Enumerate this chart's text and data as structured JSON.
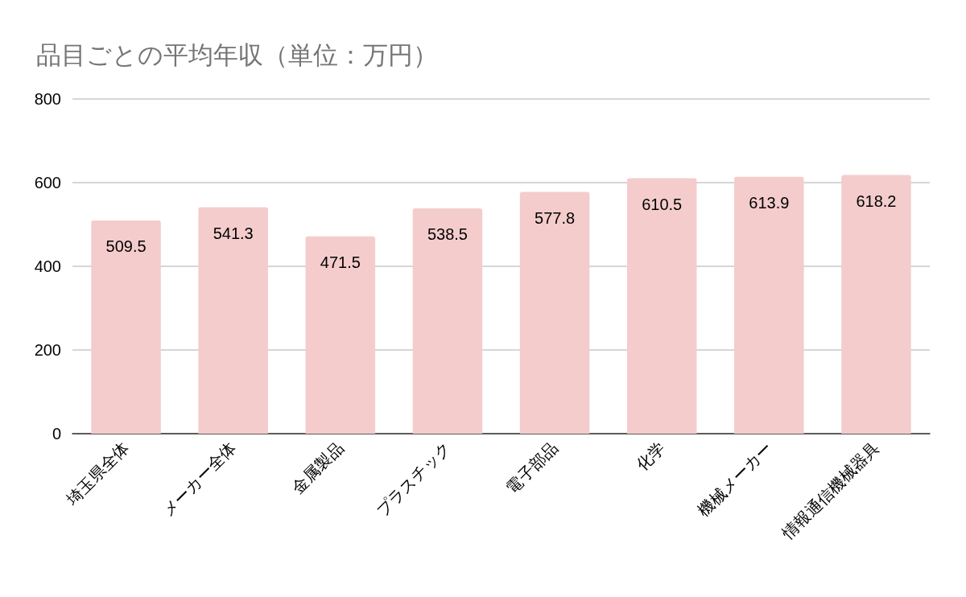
{
  "chart_data": {
    "type": "bar",
    "title": "品目ごとの平均年収（単位：万円）",
    "categories": [
      "埼玉県全体",
      "メーカー全体",
      "金属製品",
      "プラスチック",
      "電子部品",
      "化学",
      "機械メーカー",
      "情報通信機械器具"
    ],
    "values": [
      509.5,
      541.3,
      471.5,
      538.5,
      577.8,
      610.5,
      613.9,
      618.2
    ],
    "color": "#f4cccc",
    "ylim": [
      0,
      800
    ],
    "yticks": [
      0,
      200,
      400,
      600,
      800
    ],
    "grid": "y",
    "data_labels": true
  }
}
